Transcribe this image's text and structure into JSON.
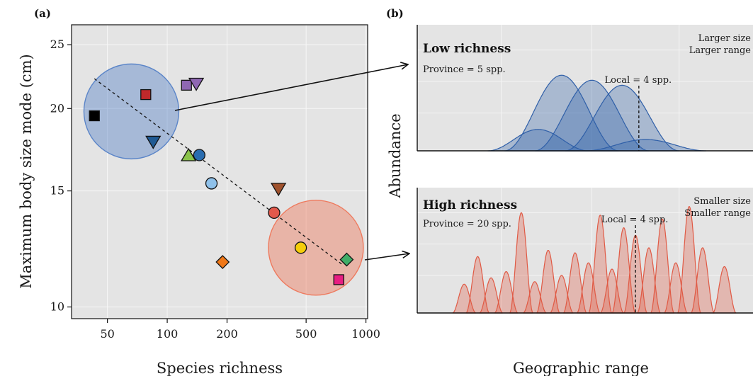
{
  "chart_data": [
    {
      "panel": "(a)",
      "type": "scatter",
      "xlabel": "Species richness",
      "ylabel": "Maximum body size mode (cm)",
      "x_scale": "log",
      "y_scale": "log",
      "xlim": [
        33,
        1020
      ],
      "ylim": [
        9.6,
        26.8
      ],
      "x_ticks": [
        50,
        100,
        200,
        500,
        1000
      ],
      "y_ticks": [
        10,
        15,
        20,
        25
      ],
      "grid": true,
      "points": [
        {
          "x": 43,
          "y": 19.5,
          "shape": "square",
          "color": "#000000"
        },
        {
          "x": 78,
          "y": 21.0,
          "shape": "square",
          "color": "#c0292b"
        },
        {
          "x": 125,
          "y": 21.7,
          "shape": "square",
          "color": "#8f67b3"
        },
        {
          "x": 140,
          "y": 21.8,
          "shape": "triangle-down",
          "color": "#8f67b3"
        },
        {
          "x": 85,
          "y": 17.8,
          "shape": "triangle-down",
          "color": "#1f5a94"
        },
        {
          "x": 128,
          "y": 17.0,
          "shape": "triangle-up",
          "color": "#8ac24a"
        },
        {
          "x": 145,
          "y": 17.0,
          "shape": "circle",
          "color": "#2a6db0"
        },
        {
          "x": 167,
          "y": 15.4,
          "shape": "circle",
          "color": "#8fc1ea"
        },
        {
          "x": 363,
          "y": 15.1,
          "shape": "triangle-down",
          "color": "#a0522d"
        },
        {
          "x": 345,
          "y": 13.9,
          "shape": "circle",
          "color": "#e2594b"
        },
        {
          "x": 470,
          "y": 12.3,
          "shape": "circle",
          "color": "#f5cd0a"
        },
        {
          "x": 190,
          "y": 11.7,
          "shape": "diamond",
          "color": "#f07818"
        },
        {
          "x": 800,
          "y": 11.8,
          "shape": "diamond",
          "color": "#41ad68"
        },
        {
          "x": 730,
          "y": 11.0,
          "shape": "square",
          "color": "#e81e82"
        }
      ],
      "trend_line": {
        "x": [
          43,
          760
        ],
        "y": [
          22.2,
          11.6
        ],
        "style": "dashed"
      },
      "highlight_circles": [
        {
          "center": [
            66,
            19.8
          ],
          "color": "#5b85c8"
        },
        {
          "center": [
            560,
            12.3
          ],
          "color": "#ee7a5e"
        }
      ]
    },
    {
      "panel": "(b)",
      "type": "area",
      "xlabel": "Geographic range",
      "ylabel": "Abundance",
      "subpanels": [
        {
          "title": "Low richness",
          "province_label": "Province = 5 spp.",
          "local_label": "Local = 4 spp.",
          "size_labels": [
            "Larger size",
            "Larger range"
          ],
          "color": "#2f5fa8",
          "local_x": 0.66,
          "curves": [
            {
              "center": 0.43,
              "width": 0.17,
              "height": 0.6
            },
            {
              "center": 0.52,
              "width": 0.17,
              "height": 0.56
            },
            {
              "center": 0.61,
              "width": 0.17,
              "height": 0.52
            },
            {
              "center": 0.36,
              "width": 0.15,
              "height": 0.17
            },
            {
              "center": 0.68,
              "width": 0.18,
              "height": 0.09
            }
          ]
        },
        {
          "title": "High richness",
          "province_label": "Province = 20 spp.",
          "local_label": "Local = 4 spp.",
          "size_labels": [
            "Smaller size",
            "Smaller range"
          ],
          "color": "#e05a45",
          "local_x": 0.65,
          "curves": [
            {
              "center": 0.14,
              "width": 0.035,
              "height": 0.23
            },
            {
              "center": 0.18,
              "width": 0.035,
              "height": 0.45
            },
            {
              "center": 0.22,
              "width": 0.035,
              "height": 0.28
            },
            {
              "center": 0.265,
              "width": 0.035,
              "height": 0.33
            },
            {
              "center": 0.31,
              "width": 0.035,
              "height": 0.8
            },
            {
              "center": 0.35,
              "width": 0.035,
              "height": 0.25
            },
            {
              "center": 0.39,
              "width": 0.035,
              "height": 0.5
            },
            {
              "center": 0.43,
              "width": 0.035,
              "height": 0.3
            },
            {
              "center": 0.47,
              "width": 0.035,
              "height": 0.48
            },
            {
              "center": 0.51,
              "width": 0.035,
              "height": 0.4
            },
            {
              "center": 0.545,
              "width": 0.035,
              "height": 0.78
            },
            {
              "center": 0.58,
              "width": 0.035,
              "height": 0.35
            },
            {
              "center": 0.615,
              "width": 0.035,
              "height": 0.68
            },
            {
              "center": 0.65,
              "width": 0.035,
              "height": 0.62
            },
            {
              "center": 0.69,
              "width": 0.035,
              "height": 0.52
            },
            {
              "center": 0.73,
              "width": 0.035,
              "height": 0.75
            },
            {
              "center": 0.77,
              "width": 0.035,
              "height": 0.4
            },
            {
              "center": 0.81,
              "width": 0.035,
              "height": 0.85
            },
            {
              "center": 0.85,
              "width": 0.035,
              "height": 0.52
            },
            {
              "center": 0.915,
              "width": 0.035,
              "height": 0.37
            }
          ]
        }
      ]
    }
  ]
}
